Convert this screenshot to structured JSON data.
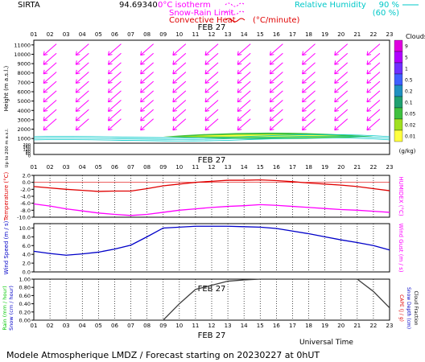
{
  "header": {
    "station": "SIRTA",
    "station_code": "94.69340",
    "legend_isotherm": "0°C isotherm",
    "legend_snow_rain": "Snow-Rain Limit",
    "legend_convective": "Convective Heat",
    "legend_convective_unit": "(°C/minute)",
    "legend_rh": "Relative Humidity",
    "rh_90": "90 %",
    "rh_60": "(60 %)"
  },
  "date_label": "FEB 27",
  "hours": [
    "01",
    "02",
    "03",
    "04",
    "05",
    "06",
    "07",
    "08",
    "09",
    "10",
    "11",
    "12",
    "13",
    "14",
    "15",
    "16",
    "17",
    "18",
    "19",
    "20",
    "21",
    "22",
    "23"
  ],
  "footer": {
    "universal_time": "Universal Time",
    "title": "Modele Atmospherique LMDZ / Forecast starting on 20230227 at 0hUT"
  },
  "colors": {
    "magenta": "#ff00ff",
    "red": "#e00000",
    "blue": "#0000c8",
    "cyan": "#00c8c8",
    "green": "#00c800",
    "black": "#000000"
  },
  "chart_data": [
    {
      "type": "heatmap",
      "panel": "clouds-wind",
      "ylabel": "Height (m a.s.l.)",
      "ylabel_lower": "Up to 200 m a.s.l.",
      "yticks": [
        "11000",
        "10000",
        "9000",
        "8000",
        "7000",
        "6000",
        "5000",
        "4000",
        "3000",
        "2000",
        "1000"
      ],
      "yticks_lower": [
        "200",
        "180",
        "160",
        "140",
        "120",
        "100",
        "80",
        "60",
        "40",
        "20",
        "0"
      ],
      "colorbar": {
        "title": "Clouds",
        "unit": "(g/kg)",
        "levels": [
          "9",
          "5",
          "1",
          "0.5",
          "0.2",
          "0.1",
          "0.05",
          "0.02",
          "0.01"
        ],
        "colors": [
          "#e000e0",
          "#b000ff",
          "#7030ff",
          "#4060ff",
          "#2090c0",
          "#20a070",
          "#40c040",
          "#a0e020",
          "#ffff40"
        ]
      },
      "cloud_band": {
        "height_m": 1200,
        "x_start": "09",
        "x_end": "22"
      },
      "wind_barbs_direction": "north-easterly (arrows pointing south-west)"
    },
    {
      "type": "line",
      "panel": "temperature-humidex",
      "ylabel": "Temperature (°C)",
      "ylabel_right": "HUMIDEX (°C)",
      "yticks": [
        "2.0",
        "0.0",
        "-2.0",
        "-4.0",
        "-6.0",
        "-8.0",
        "-10.0"
      ],
      "ylim": [
        -10,
        2
      ],
      "x": [
        "01",
        "02",
        "03",
        "04",
        "05",
        "06",
        "07",
        "08",
        "09",
        "10",
        "11",
        "12",
        "13",
        "14",
        "15",
        "16",
        "17",
        "18",
        "19",
        "20",
        "21",
        "22",
        "23"
      ],
      "series": [
        {
          "values": [
            -1.2,
            -1.6,
            -2.0,
            -2.3,
            -2.6,
            -2.5,
            -2.5,
            -1.8,
            -1.0,
            -0.5,
            0.0,
            0.3,
            0.6,
            0.6,
            0.7,
            0.5,
            0.2,
            -0.2,
            -0.5,
            -0.8,
            -1.2,
            -1.8,
            -2.4
          ]
        },
        {
          "values": [
            -6.2,
            -6.8,
            -7.6,
            -8.2,
            -8.8,
            -9.2,
            -9.5,
            -9.2,
            -8.6,
            -8.0,
            -7.6,
            -7.2,
            -6.9,
            -6.7,
            -6.4,
            -6.6,
            -6.9,
            -7.2,
            -7.5,
            -7.8,
            -8.0,
            -8.3,
            -8.6
          ]
        }
      ]
    },
    {
      "type": "line",
      "panel": "wind",
      "ylabel": "Wind Speed (m / s)",
      "ylabel_right": "Wind Gust (m / s)",
      "yticks": [
        "10.0",
        "8.0",
        "6.0",
        "4.0",
        "2.0",
        "0.0"
      ],
      "ylim": [
        0,
        11
      ],
      "x": [
        "01",
        "02",
        "03",
        "04",
        "05",
        "06",
        "07",
        "08",
        "09",
        "10",
        "11",
        "12",
        "13",
        "14",
        "15",
        "16",
        "17",
        "18",
        "19",
        "20",
        "21",
        "22",
        "23"
      ],
      "series": [
        {
          "values": [
            4.7,
            4.2,
            3.8,
            4.1,
            4.5,
            5.2,
            6.1,
            8.0,
            10.0,
            10.2,
            10.4,
            10.4,
            10.4,
            10.3,
            10.2,
            9.9,
            9.3,
            8.7,
            8.0,
            7.3,
            6.7,
            6.0,
            5.0
          ]
        }
      ]
    },
    {
      "type": "line",
      "panel": "precipitation",
      "ylabel": "Rain (mm / hour)",
      "ylabel2": "Snow (cm / hour)",
      "ylabel_right": "CAPE (J / g)",
      "ylabel_right2": "Snow Depth (cm)",
      "ylabel_right3": "Cloud Fraction",
      "yticks": [
        "1.00",
        "0.80",
        "0.60",
        "0.40",
        "0.20",
        "0.00"
      ],
      "ylim": [
        0,
        1
      ],
      "x": [
        "01",
        "02",
        "03",
        "04",
        "05",
        "06",
        "07",
        "08",
        "09",
        "10",
        "11",
        "12",
        "13",
        "14",
        "15",
        "16",
        "17",
        "18",
        "19",
        "20",
        "21",
        "22",
        "23"
      ],
      "series": [
        {
          "values": [
            0,
            0,
            0,
            0,
            0,
            0,
            0,
            0,
            0,
            0.4,
            0.75,
            0.85,
            0.95,
            0.98,
            1.0,
            1.0,
            1.0,
            1.0,
            1.0,
            1.0,
            1.0,
            0.7,
            0.3
          ]
        }
      ]
    }
  ]
}
